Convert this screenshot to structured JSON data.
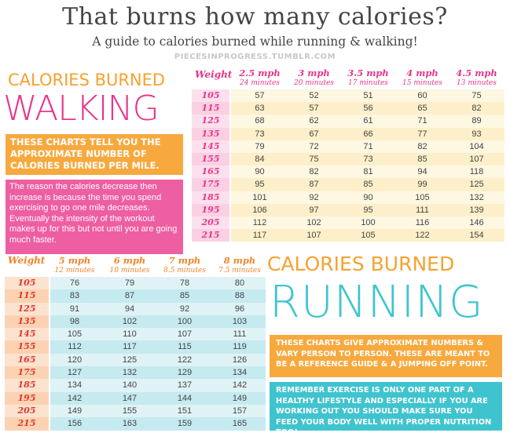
{
  "header": {
    "title": "That burns how many calories?",
    "subtitle": "A guide to calories burned while running & walking!",
    "source": "PIECESINPROGRESS.TUMBLR.COM"
  },
  "walking": {
    "label_top": "CALORIES BURNED",
    "label_big": "WALKING",
    "note_orange": "THESE CHARTS TELL YOU THE APPROXIMATE NUMBER OF CALORIES BURNED PER MILE.",
    "note_pink": "The reason the calories decrease then increase is because the time you spend exercising to go one mile decreases. Eventually the intensity of the workout makes up for this but not until you are going much faster.",
    "weight_header": "Weight",
    "columns": [
      {
        "speed": "2.5 mph",
        "time": "24 minutes"
      },
      {
        "speed": "3 mph",
        "time": "20 minutes"
      },
      {
        "speed": "3.5 mph",
        "time": "17 minutes"
      },
      {
        "speed": "4 mph",
        "time": "15 minutes"
      },
      {
        "speed": "4.5 mph",
        "time": "13 minutes"
      }
    ],
    "rows": [
      {
        "weight": "105",
        "values": [
          "57",
          "52",
          "51",
          "60",
          "75"
        ]
      },
      {
        "weight": "115",
        "values": [
          "63",
          "57",
          "56",
          "65",
          "82"
        ]
      },
      {
        "weight": "125",
        "values": [
          "68",
          "62",
          "61",
          "71",
          "89"
        ]
      },
      {
        "weight": "135",
        "values": [
          "73",
          "67",
          "66",
          "77",
          "93"
        ]
      },
      {
        "weight": "145",
        "values": [
          "79",
          "72",
          "71",
          "82",
          "104"
        ]
      },
      {
        "weight": "155",
        "values": [
          "84",
          "75",
          "73",
          "85",
          "107"
        ]
      },
      {
        "weight": "165",
        "values": [
          "90",
          "82",
          "81",
          "94",
          "118"
        ]
      },
      {
        "weight": "175",
        "values": [
          "95",
          "87",
          "85",
          "99",
          "125"
        ]
      },
      {
        "weight": "185",
        "values": [
          "101",
          "92",
          "90",
          "105",
          "132"
        ]
      },
      {
        "weight": "195",
        "values": [
          "106",
          "97",
          "95",
          "111",
          "139"
        ]
      },
      {
        "weight": "205",
        "values": [
          "112",
          "102",
          "100",
          "116",
          "146"
        ]
      },
      {
        "weight": "215",
        "values": [
          "117",
          "107",
          "105",
          "122",
          "154"
        ]
      }
    ]
  },
  "running": {
    "label_top": "CALORIES BURNED",
    "label_big": "RUNNING",
    "note_orange": "THESE CHARTS GIVE APPROXIMATE NUMBERS & VARY PERSON TO PERSON. THESE ARE MEANT TO BE A REFERENCE GUIDE & A JUMPING OFF POINT.",
    "note_teal": "REMEMBER EXERCISE IS ONLY ONE PART OF A HEALTHY LIFESTYLE AND ESPECIALLY IF YOU ARE WORKING OUT YOU SHOULD MAKE SURE YOU FEED YOUR BODY WELL WITH PROPER NUTRITION TOO!",
    "weight_header": "Weight",
    "columns": [
      {
        "speed": "5 mph",
        "time": "12 minutes"
      },
      {
        "speed": "6 mph",
        "time": "10 minutes"
      },
      {
        "speed": "7 mph",
        "time": "8.5 minutes"
      },
      {
        "speed": "8 mph",
        "time": "7.5 minutes"
      }
    ],
    "rows": [
      {
        "weight": "105",
        "values": [
          "76",
          "79",
          "78",
          "80"
        ]
      },
      {
        "weight": "115",
        "values": [
          "83",
          "87",
          "85",
          "88"
        ]
      },
      {
        "weight": "125",
        "values": [
          "91",
          "94",
          "92",
          "96"
        ]
      },
      {
        "weight": "135",
        "values": [
          "98",
          "102",
          "100",
          "103"
        ]
      },
      {
        "weight": "145",
        "values": [
          "105",
          "110",
          "107",
          "111"
        ]
      },
      {
        "weight": "155",
        "values": [
          "112",
          "117",
          "115",
          "119"
        ]
      },
      {
        "weight": "165",
        "values": [
          "120",
          "125",
          "122",
          "126"
        ]
      },
      {
        "weight": "175",
        "values": [
          "127",
          "132",
          "129",
          "134"
        ]
      },
      {
        "weight": "185",
        "values": [
          "134",
          "140",
          "137",
          "142"
        ]
      },
      {
        "weight": "195",
        "values": [
          "142",
          "147",
          "144",
          "149"
        ]
      },
      {
        "weight": "205",
        "values": [
          "149",
          "155",
          "151",
          "157"
        ]
      },
      {
        "weight": "215",
        "values": [
          "156",
          "163",
          "159",
          "165"
        ]
      }
    ]
  },
  "colors": {
    "pink": "#e8358a",
    "orange": "#f7a93e",
    "teal": "#3fc4cf",
    "pink_box": "#ee5ea2"
  }
}
